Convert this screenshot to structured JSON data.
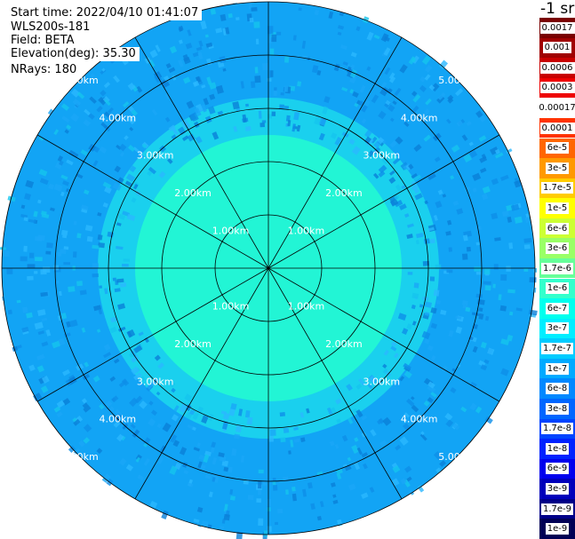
{
  "info": {
    "start_time": "Start time: 2022/04/10 01:41:07",
    "site": "WLS200s-181",
    "field": "Field: BETA",
    "elevation": "Elevation(deg): 35.30",
    "nrays": "NRays: 180"
  },
  "chart_data": {
    "type": "heatmap",
    "subtype": "polar_ppi",
    "field": "BETA",
    "range_rings_km": [
      1,
      2,
      3,
      4,
      5
    ],
    "range_labels": [
      "1.00km",
      "2.00km",
      "3.00km",
      "4.00km",
      "5.00km"
    ],
    "max_range_km": 5.0,
    "azimuth_spokes_deg": [
      0,
      30,
      60,
      90,
      120,
      150,
      180,
      210,
      240,
      270,
      300,
      330
    ],
    "colorbar": {
      "unit": "-1 sr",
      "labels": [
        "0.0017",
        "0.001",
        "0.0006",
        "0.0003",
        "0.00017",
        "0.0001",
        "6e-5",
        "3e-5",
        "1.7e-5",
        "1e-5",
        "6e-6",
        "3e-6",
        "1.7e-6",
        "1e-6",
        "6e-7",
        "3e-7",
        "1.7e-7",
        "1e-7",
        "6e-8",
        "3e-8",
        "1.7e-8",
        "1e-8",
        "6e-9",
        "3e-9",
        "1.7e-9",
        "1e-9"
      ],
      "colors": [
        "#7a0000",
        "#a00000",
        "#c80000",
        "#ee0000",
        "#ffffff",
        "#ff3300",
        "#ff6600",
        "#ff9900",
        "#ffcc00",
        "#ffff00",
        "#ccff33",
        "#99ff66",
        "#66ff99",
        "#33ffcc",
        "#00ffee",
        "#00eeff",
        "#00ccff",
        "#00aaff",
        "#0088ff",
        "#0066ff",
        "#0044ff",
        "#0022ff",
        "#0000ee",
        "#0000bb",
        "#000088",
        "#000055"
      ]
    },
    "field_description": [
      {
        "range_km": [
          0,
          2.5
        ],
        "color": "#22f5d5"
      },
      {
        "range_km": [
          2.5,
          3.2
        ],
        "color": "#1ad0ee"
      },
      {
        "range_km": [
          3.2,
          5.0
        ],
        "color": "#12a4f5"
      }
    ]
  }
}
